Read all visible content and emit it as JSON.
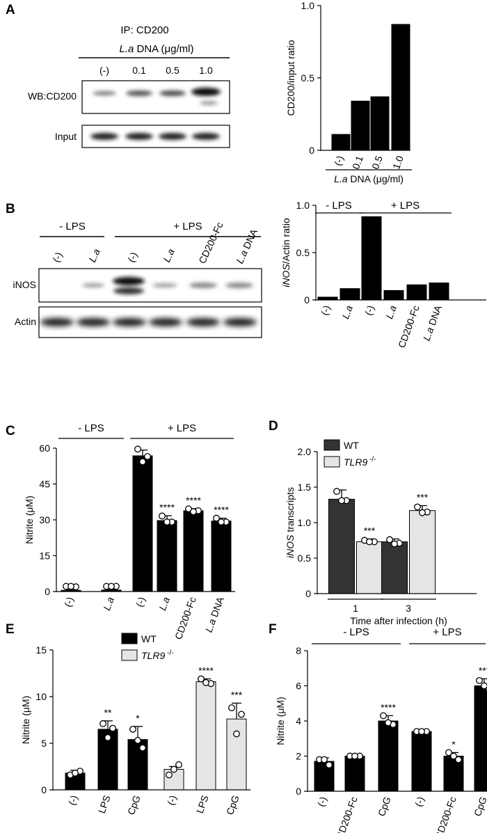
{
  "panels": {
    "A": {
      "letter": "A",
      "ip_label": "IP: CD200",
      "dna_label": "L.a",
      "dna_unit": " DNA (μg/ml)",
      "lanes": [
        "(-)",
        "0.1",
        "0.5",
        "1.0"
      ],
      "wb_label": "WB:CD200",
      "input_label": "Input"
    },
    "B": {
      "letter": "B",
      "minus_lps": "- LPS",
      "plus_lps": "+ LPS",
      "lanes": [
        "(-)",
        "L.a",
        "(-)",
        "L.a",
        "CD200-Fc",
        "L.a DNA"
      ],
      "inos_label": "iNOS",
      "actin_label": "Actin"
    },
    "C": {
      "letter": "C"
    },
    "D": {
      "letter": "D"
    },
    "E": {
      "letter": "E"
    },
    "F": {
      "letter": "F"
    }
  },
  "chart_data": [
    {
      "id": "A",
      "type": "bar",
      "categories": [
        "(-)",
        "0.1",
        "0.5",
        "1.0"
      ],
      "values": [
        0.11,
        0.34,
        0.37,
        0.87
      ],
      "ylabel": "CD200/input ratio",
      "xlabel": "L.a DNA (μg/ml)",
      "ylim": [
        0,
        1.0
      ],
      "yticks": [
        "0",
        "0.5",
        "1.0"
      ],
      "yticks_v": [
        0,
        0.5,
        1.0
      ],
      "bar_color": "#000000"
    },
    {
      "id": "B",
      "type": "bar",
      "categories": [
        "(-)",
        "L.a",
        "(-)",
        "L.a",
        "CD200-Fc",
        "L.a DNA"
      ],
      "values": [
        0.03,
        0.12,
        0.88,
        0.1,
        0.16,
        0.18
      ],
      "ylabel": "iNOS/Actin ratio",
      "ylim": [
        0,
        1.0
      ],
      "yticks": [
        "0",
        "0.5",
        "1.0"
      ],
      "yticks_v": [
        0,
        0.5,
        1.0
      ],
      "groups": [
        {
          "label": "- LPS",
          "from": 0,
          "to": 1
        },
        {
          "label": "+ LPS",
          "from": 2,
          "to": 5
        }
      ],
      "bar_color": "#000000"
    },
    {
      "id": "C",
      "type": "bar",
      "categories": [
        "(-)",
        "L.a",
        "(-)",
        "L.a",
        "CD200-Fc",
        "L.a DNA"
      ],
      "values": [
        0.5,
        0.6,
        56.8,
        29.7,
        33.8,
        29.5
      ],
      "errors": [
        0.2,
        0.2,
        2.4,
        2.0,
        0.9,
        1.2
      ],
      "points": [
        [
          1,
          0.8,
          1
        ],
        [
          1,
          1,
          1
        ],
        [
          59.6,
          56.5,
          54.3
        ],
        [
          31.6,
          29.1,
          29.1
        ],
        [
          34.6,
          33.8,
          33.4
        ],
        [
          30.7,
          29.1,
          29.1
        ]
      ],
      "stars": [
        "",
        "",
        "",
        "****",
        "****",
        "****"
      ],
      "ylabel": "Nitrite (μM)",
      "ylim": [
        0,
        60
      ],
      "yticks": [
        "0",
        "15",
        "30",
        "45",
        "60"
      ],
      "yticks_v": [
        0,
        15,
        30,
        45,
        60
      ],
      "groups": [
        {
          "label": "- LPS",
          "from": 0,
          "to": 1
        },
        {
          "label": "+ LPS",
          "from": 2,
          "to": 5
        }
      ]
    },
    {
      "id": "D",
      "type": "bar",
      "categories": [
        "1",
        "3"
      ],
      "series": [
        {
          "name": "WT",
          "values": [
            1.33,
            0.73
          ],
          "errors": [
            0.13,
            0.04
          ],
          "points": [
            [
              1.44,
              1.31,
              1.31
            ],
            [
              0.76,
              0.71,
              0.7
            ]
          ],
          "stars": [
            "",
            ""
          ],
          "color": "#333333"
        },
        {
          "name": "TLR9 -/-",
          "values": [
            0.73,
            1.17
          ],
          "errors": [
            0.04,
            0.07
          ],
          "points": [
            [
              0.75,
              0.73,
              0.73
            ],
            [
              1.22,
              1.15,
              1.14
            ]
          ],
          "stars": [
            "***",
            "***"
          ],
          "color": "#e5e5e5"
        }
      ],
      "ylabel": "iNOS transcripts",
      "xlabel": "Time after infection (h)",
      "ylim": [
        0,
        2.0
      ],
      "yticks": [
        "0",
        "0.5",
        "1.0",
        "1.5",
        "2.0"
      ],
      "yticks_v": [
        0,
        0.5,
        1.0,
        1.5,
        2.0
      ]
    },
    {
      "id": "E",
      "type": "bar",
      "categories": [
        "(-)",
        "LPS",
        "CpG",
        "(-)",
        "LPS",
        "CpG"
      ],
      "values": [
        1.8,
        6.5,
        5.4,
        2.2,
        11.6,
        7.6
      ],
      "errors": [
        0.3,
        0.9,
        1.4,
        0.3,
        0.3,
        1.7
      ],
      "points": [
        [
          1.6,
          2.0,
          1.8
        ],
        [
          7.1,
          6.6,
          5.6
        ],
        [
          6.5,
          4.5,
          5.3
        ],
        [
          1.6,
          2.7,
          2.2
        ],
        [
          11.9,
          11.4,
          11.5
        ],
        [
          8.8,
          8.1,
          6.0
        ]
      ],
      "stars": [
        "",
        "**",
        "*",
        "",
        "****",
        "***"
      ],
      "series_of_bar": [
        0,
        0,
        0,
        1,
        1,
        1
      ],
      "legend": [
        {
          "name": "WT",
          "color": "#000000"
        },
        {
          "name": "TLR9 -/-",
          "color": "#e5e5e5"
        }
      ],
      "ylabel": "Nitrite (μM)",
      "ylim": [
        0,
        15
      ],
      "yticks": [
        "0",
        "5",
        "10",
        "15"
      ],
      "yticks_v": [
        0,
        5,
        10,
        15
      ]
    },
    {
      "id": "F",
      "type": "bar",
      "categories": [
        "(-)",
        "CD200-Fc",
        "CpG",
        "(-)",
        "CD200-Fc",
        "CpG"
      ],
      "values": [
        1.7,
        2.0,
        4.0,
        3.4,
        2.0,
        6.0
      ],
      "errors": [
        0.2,
        0.05,
        0.3,
        0.1,
        0.2,
        0.4
      ],
      "points": [
        [
          1.8,
          1.5,
          1.8
        ],
        [
          2.0,
          2.0,
          2.0
        ],
        [
          4.3,
          3.8,
          3.9
        ],
        [
          3.4,
          3.4,
          3.4
        ],
        [
          2.2,
          1.8,
          2.0
        ],
        [
          6.3,
          5.8,
          6.0
        ]
      ],
      "stars": [
        "",
        "",
        "****",
        "",
        "*",
        "***"
      ],
      "ylabel": "Nitrite (μM)",
      "ylim": [
        0,
        8
      ],
      "yticks": [
        "0",
        "2",
        "4",
        "6",
        "8"
      ],
      "yticks_v": [
        0,
        2,
        4,
        6,
        8
      ],
      "groups": [
        {
          "label": "- LPS",
          "from": 0,
          "to": 2
        },
        {
          "label": "+ LPS",
          "from": 3,
          "to": 5
        }
      ]
    }
  ]
}
